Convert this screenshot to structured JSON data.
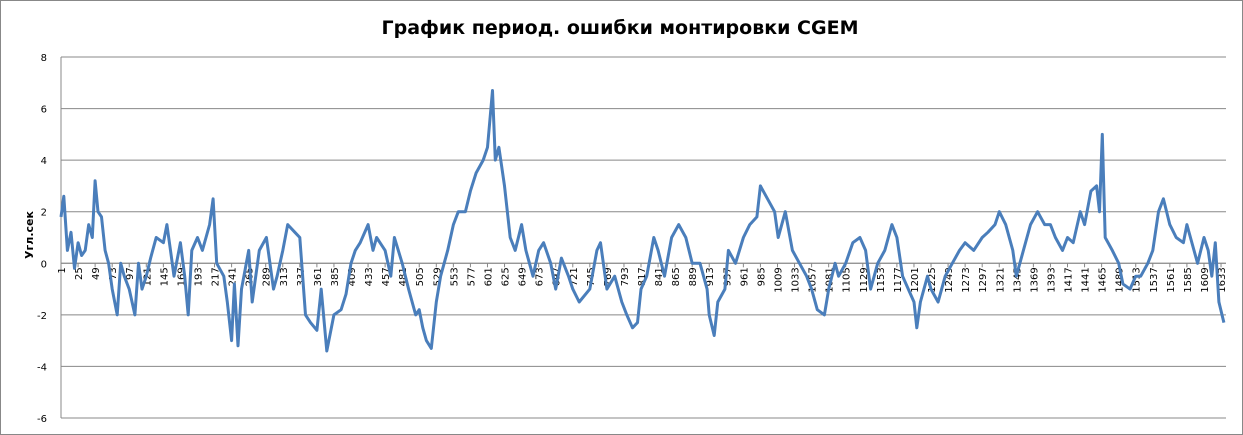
{
  "chart_data": {
    "type": "line",
    "title": "График период. ошибки  монтировки CGEM",
    "y_label": "Угл.сек",
    "x": [
      1,
      5,
      10,
      15,
      20,
      25,
      30,
      35,
      40,
      45,
      49,
      53,
      58,
      63,
      68,
      73,
      80,
      85,
      90,
      97,
      105,
      110,
      115,
      121,
      127,
      135,
      145,
      150,
      155,
      160,
      169,
      175,
      180,
      185,
      193,
      200,
      210,
      215,
      220,
      230,
      235,
      241,
      245,
      250,
      255,
      265,
      270,
      280,
      290,
      300,
      305,
      313,
      320,
      330,
      337,
      345,
      352,
      361,
      367,
      375,
      385,
      395,
      402,
      409,
      415,
      422,
      433,
      440,
      445,
      457,
      465,
      470,
      481,
      490,
      500,
      505,
      510,
      515,
      522,
      529,
      535,
      545,
      553,
      560,
      570,
      577,
      585,
      595,
      601,
      608,
      612,
      617,
      625,
      633,
      640,
      649,
      655,
      665,
      673,
      680,
      690,
      697,
      705,
      715,
      721,
      730,
      745,
      755,
      760,
      769,
      780,
      790,
      797,
      805,
      812,
      817,
      825,
      835,
      841,
      850,
      860,
      870,
      880,
      889,
      900,
      910,
      913,
      920,
      925,
      935,
      940,
      950,
      961,
      970,
      980,
      985,
      995,
      1005,
      1010,
      1020,
      1030,
      1040,
      1050,
      1057,
      1065,
      1075,
      1081,
      1090,
      1095,
      1105,
      1115,
      1125,
      1133,
      1140,
      1150,
      1160,
      1170,
      1177,
      1185,
      1193,
      1201,
      1205,
      1210,
      1220,
      1225,
      1235,
      1245,
      1255,
      1265,
      1273,
      1285,
      1297,
      1305,
      1315,
      1321,
      1330,
      1340,
      1345,
      1355,
      1365,
      1375,
      1385,
      1393,
      1400,
      1410,
      1417,
      1425,
      1435,
      1441,
      1450,
      1458,
      1462,
      1466,
      1470,
      1480,
      1489,
      1495,
      1505,
      1513,
      1520,
      1530,
      1537,
      1545,
      1552,
      1561,
      1570,
      1580,
      1585,
      1595,
      1600,
      1609,
      1615,
      1620,
      1625,
      1630,
      1637
    ],
    "series": [
      {
        "name": "Угл.сек",
        "color": "#4a7ebb",
        "values": [
          1.8,
          2.6,
          0.5,
          1.2,
          -0.2,
          0.8,
          0.3,
          0.5,
          1.5,
          1.0,
          3.2,
          2.0,
          1.8,
          0.5,
          0,
          -1.0,
          -2.0,
          0,
          -0.5,
          -1.0,
          -2.0,
          0,
          -1.0,
          -0.5,
          0.2,
          1.0,
          0.8,
          1.5,
          0.5,
          -0.5,
          0.8,
          -0.5,
          -2.0,
          0.5,
          1.0,
          0.5,
          1.5,
          2.5,
          0,
          -0.5,
          -1.5,
          -3.0,
          -0.8,
          -3.2,
          -1.0,
          0.5,
          -1.5,
          0.5,
          1.0,
          -1.0,
          -0.5,
          0.5,
          1.5,
          1.2,
          1.0,
          -2.0,
          -2.3,
          -2.6,
          -1.0,
          -3.4,
          -2.0,
          -1.8,
          -1.2,
          0,
          0.5,
          0.8,
          1.5,
          0.5,
          1.0,
          0.5,
          -0.5,
          1.0,
          0,
          -1.0,
          -2.0,
          -1.8,
          -2.5,
          -3.0,
          -3.3,
          -1.5,
          -0.5,
          0.5,
          1.5,
          2.0,
          2.0,
          2.8,
          3.5,
          4.0,
          4.5,
          6.7,
          4.0,
          4.5,
          3.0,
          1.0,
          0.5,
          1.5,
          0.5,
          -0.5,
          0.5,
          0.8,
          0,
          -1.0,
          0.2,
          -0.5,
          -1.0,
          -1.5,
          -1.0,
          0.5,
          0.8,
          -1.0,
          -0.5,
          -1.5,
          -2.0,
          -2.5,
          -2.3,
          -1.0,
          -0.5,
          1.0,
          0.5,
          -0.5,
          1.0,
          1.5,
          1.0,
          0,
          0,
          -1.0,
          -2.0,
          -2.8,
          -1.5,
          -1.0,
          0.5,
          0,
          1.0,
          1.5,
          1.8,
          3.0,
          2.5,
          2.0,
          1.0,
          2.0,
          0.5,
          0,
          -0.5,
          -1.0,
          -1.8,
          -2.0,
          -1.0,
          0,
          -0.5,
          0,
          0.8,
          1.0,
          0.5,
          -1.0,
          0,
          0.5,
          1.5,
          1.0,
          -0.5,
          -1.0,
          -1.5,
          -2.5,
          -1.5,
          -0.5,
          -1.0,
          -1.5,
          -0.5,
          0,
          0.5,
          0.8,
          0.5,
          1.0,
          1.2,
          1.5,
          2.0,
          1.5,
          0.5,
          -0.5,
          0.5,
          1.5,
          2.0,
          1.5,
          1.5,
          1.0,
          0.5,
          1.0,
          0.8,
          2.0,
          1.5,
          2.8,
          3.0,
          2.0,
          5.0,
          1.0,
          0.5,
          0,
          -0.8,
          -1.0,
          -0.5,
          -0.5,
          0,
          0.5,
          2.0,
          2.5,
          1.5,
          1.0,
          0.8,
          1.5,
          0.5,
          0,
          1.0,
          0.5,
          -0.5,
          0.8,
          -1.5,
          -2.3
        ]
      }
    ],
    "xlim": [
      1,
      1640
    ],
    "xticks": [
      1,
      25,
      49,
      73,
      97,
      121,
      145,
      169,
      193,
      217,
      241,
      265,
      289,
      313,
      337,
      361,
      385,
      409,
      433,
      457,
      481,
      505,
      529,
      553,
      577,
      601,
      625,
      649,
      673,
      697,
      721,
      745,
      769,
      793,
      817,
      841,
      865,
      889,
      913,
      937,
      961,
      985,
      1009,
      1033,
      1057,
      1081,
      1105,
      1129,
      1153,
      1177,
      1201,
      1225,
      1249,
      1273,
      1297,
      1321,
      1345,
      1369,
      1393,
      1417,
      1441,
      1465,
      1489,
      1513,
      1537,
      1561,
      1585,
      1609,
      1633
    ],
    "ylim": [
      -6,
      8
    ],
    "yticks": [
      -6,
      -4,
      -2,
      0,
      2,
      4,
      6,
      8
    ],
    "grid": true
  }
}
